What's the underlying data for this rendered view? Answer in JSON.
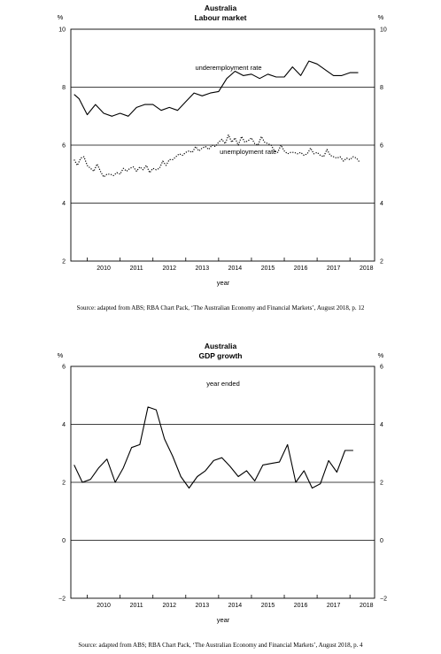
{
  "charts": [
    {
      "type": "line",
      "title": "Australia",
      "subtitle": "Labour market",
      "unit_left": "%",
      "unit_right": "%",
      "xlabel": "year",
      "ylim": [
        2,
        10
      ],
      "yticks": [
        2,
        4,
        6,
        8,
        10
      ],
      "xticks": [
        "2010",
        "2011",
        "2012",
        "2013",
        "2014",
        "2015",
        "2016",
        "2017",
        "2018"
      ],
      "xrange": [
        2009.5,
        2018.75
      ],
      "gridlines": [
        4,
        6,
        8
      ],
      "source": "Source: adapted from ABS; RBA Chart Pack, ‘The Australian Economy and Financial Markets’, August 2018, p. 12",
      "series": [
        {
          "name": "underemployment rate",
          "style": "solid",
          "x": [
            2009.6,
            2009.75,
            2010.0,
            2010.25,
            2010.5,
            2010.75,
            2011.0,
            2011.25,
            2011.5,
            2011.75,
            2012.0,
            2012.25,
            2012.5,
            2012.75,
            2013.0,
            2013.25,
            2013.5,
            2013.75,
            2014.0,
            2014.25,
            2014.5,
            2014.75,
            2015.0,
            2015.25,
            2015.5,
            2015.75,
            2016.0,
            2016.25,
            2016.5,
            2016.75,
            2017.0,
            2017.25,
            2017.5,
            2017.75,
            2018.0,
            2018.25
          ],
          "values": [
            7.75,
            7.6,
            7.05,
            7.4,
            7.1,
            7.0,
            7.1,
            7.0,
            7.3,
            7.4,
            7.4,
            7.2,
            7.3,
            7.2,
            7.5,
            7.8,
            7.7,
            7.8,
            7.85,
            8.3,
            8.55,
            8.4,
            8.45,
            8.3,
            8.45,
            8.35,
            8.35,
            8.7,
            8.4,
            8.9,
            8.8,
            8.6,
            8.4,
            8.4,
            8.5,
            8.5
          ]
        },
        {
          "name": "unemployment rate",
          "style": "dotted",
          "x": [
            2009.6,
            2009.7,
            2009.8,
            2009.9,
            2010.0,
            2010.1,
            2010.2,
            2010.3,
            2010.4,
            2010.5,
            2010.6,
            2010.7,
            2010.8,
            2010.9,
            2011.0,
            2011.1,
            2011.2,
            2011.3,
            2011.4,
            2011.5,
            2011.6,
            2011.7,
            2011.8,
            2011.9,
            2012.0,
            2012.1,
            2012.2,
            2012.3,
            2012.4,
            2012.5,
            2012.6,
            2012.7,
            2012.8,
            2012.9,
            2013.0,
            2013.1,
            2013.2,
            2013.3,
            2013.4,
            2013.5,
            2013.6,
            2013.7,
            2013.8,
            2013.9,
            2014.0,
            2014.1,
            2014.2,
            2014.3,
            2014.4,
            2014.5,
            2014.6,
            2014.7,
            2014.8,
            2014.9,
            2015.0,
            2015.1,
            2015.2,
            2015.3,
            2015.4,
            2015.5,
            2015.6,
            2015.7,
            2015.8,
            2015.9,
            2016.0,
            2016.1,
            2016.2,
            2016.3,
            2016.4,
            2016.5,
            2016.6,
            2016.7,
            2016.8,
            2016.9,
            2017.0,
            2017.1,
            2017.2,
            2017.3,
            2017.4,
            2017.5,
            2017.6,
            2017.7,
            2017.8,
            2017.9,
            2018.0,
            2018.1,
            2018.2,
            2018.3
          ],
          "values": [
            5.5,
            5.3,
            5.55,
            5.6,
            5.3,
            5.2,
            5.1,
            5.35,
            5.1,
            4.9,
            5.0,
            5.0,
            4.95,
            5.05,
            5.0,
            5.2,
            5.1,
            5.2,
            5.25,
            5.1,
            5.25,
            5.15,
            5.3,
            5.05,
            5.2,
            5.15,
            5.2,
            5.45,
            5.3,
            5.5,
            5.5,
            5.6,
            5.7,
            5.65,
            5.75,
            5.8,
            5.75,
            5.95,
            5.8,
            5.9,
            5.95,
            5.85,
            6.0,
            5.95,
            6.1,
            6.2,
            6.05,
            6.35,
            6.1,
            6.25,
            6.0,
            6.3,
            6.1,
            6.15,
            6.25,
            6.05,
            6.0,
            6.3,
            6.1,
            6.05,
            6.0,
            5.8,
            5.75,
            6.0,
            5.8,
            5.7,
            5.75,
            5.75,
            5.7,
            5.75,
            5.65,
            5.7,
            5.9,
            5.7,
            5.75,
            5.65,
            5.6,
            5.85,
            5.65,
            5.6,
            5.55,
            5.6,
            5.45,
            5.55,
            5.5,
            5.6,
            5.55,
            5.4
          ]
        }
      ]
    },
    {
      "type": "line",
      "title": "Australia",
      "subtitle": "GDP growth",
      "unit_left": "%",
      "unit_right": "%",
      "xlabel": "year",
      "annotation": "year ended",
      "ylim": [
        -2,
        6
      ],
      "yticks": [
        -2,
        0,
        2,
        4,
        6
      ],
      "xticks": [
        "2010",
        "2011",
        "2012",
        "2013",
        "2014",
        "2015",
        "2016",
        "2017",
        "2018"
      ],
      "xrange": [
        2009.5,
        2018.75
      ],
      "gridlines": [
        0,
        2,
        4
      ],
      "source": "Source: adapted from ABS; RBA Chart Pack, ‘The Australian Economy and Financial Markets’, August 2018, p. 4",
      "series": [
        {
          "name": "",
          "style": "solid",
          "x": [
            2009.6,
            2009.85,
            2010.1,
            2010.35,
            2010.6,
            2010.85,
            2011.1,
            2011.35,
            2011.6,
            2011.85,
            2012.1,
            2012.35,
            2012.6,
            2012.85,
            2013.1,
            2013.35,
            2013.6,
            2013.85,
            2014.1,
            2014.35,
            2014.6,
            2014.85,
            2015.1,
            2015.35,
            2015.6,
            2015.85,
            2016.1,
            2016.35,
            2016.6,
            2016.85,
            2017.1,
            2017.35,
            2017.6,
            2017.85,
            2018.1
          ],
          "values": [
            2.6,
            2.0,
            2.1,
            2.5,
            2.8,
            2.0,
            2.5,
            3.2,
            3.3,
            4.6,
            4.5,
            3.5,
            2.9,
            2.2,
            1.8,
            2.2,
            2.4,
            2.75,
            2.85,
            2.55,
            2.2,
            2.4,
            2.05,
            2.6,
            2.65,
            2.7,
            3.3,
            2.0,
            2.4,
            1.8,
            1.95,
            2.75,
            2.35,
            3.1,
            3.1
          ]
        }
      ]
    }
  ],
  "labels_pos": {
    "under_label_value": [
      2014.3,
      8.6
    ],
    "unemp_label_value": [
      2014.9,
      5.7
    ]
  }
}
